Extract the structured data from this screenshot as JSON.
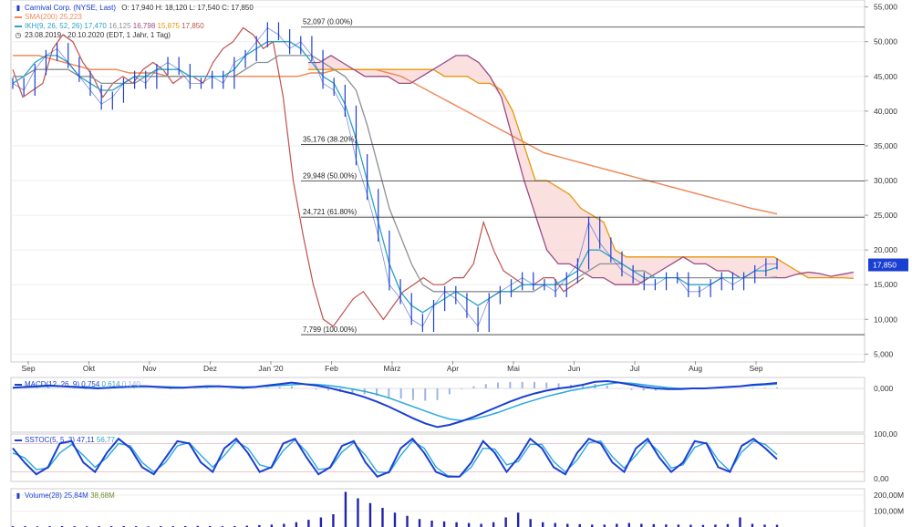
{
  "legend": {
    "instrument": "Carnival Corp. (NYSE, Last)",
    "ohlc": "O: 17,940  H: 18,120  L: 17,540  C: 17,850",
    "sma_label": "SMA(200)",
    "sma_value": "25,223",
    "ikh_label": "IKH(9, 26, 52, 26)",
    "ikh_v1": "17,470",
    "ikh_v2": "16,125",
    "ikh_v3": "16,798",
    "ikh_v4": "15,875",
    "ikh_v5": "17,850",
    "range": "23.08.2019 - 20.10.2020",
    "range_info": "(EDT, 1 Jahr, 1 Tag)",
    "macd_label": "MACD(12, 26, 9)",
    "macd_v1": "0,754",
    "macd_v2": "0,614",
    "macd_v3": "0,140",
    "sstoc_label": "SSTOC(5, 5, 3)",
    "sstoc_v1": "47,11",
    "sstoc_v2": "56,77",
    "volume_label": "Volume(28)",
    "volume_v1": "25,84M",
    "volume_v2": "38,68M"
  },
  "colors": {
    "price": "#1b3fd0",
    "sma": "#f08a5d",
    "tenkan": "#2aa3c7",
    "kijun": "#8b8f96",
    "spanA": "#9a4a86",
    "spanB": "#e8960a",
    "chikou": "#c0504d",
    "cloud": "#f9d5d5",
    "macd": "#1b3fd0",
    "signal": "#29a8df",
    "hist": "#9cb4e6",
    "volume": "#2222aa"
  },
  "chart_data": {
    "type": "line",
    "price_chart": {
      "y_ticks": [
        "55,000",
        "50,000",
        "45,000",
        "40,000",
        "35,000",
        "30,000",
        "25,000",
        "20,000",
        "15,000",
        "10,000",
        "5,000"
      ],
      "y_tick_values": [
        55,
        50,
        45,
        40,
        35,
        30,
        25,
        20,
        15,
        10,
        5
      ],
      "ylim": [
        4,
        56
      ],
      "x_ticks": [
        "Sep",
        "Okt",
        "Nov",
        "Dez",
        "Jan '20",
        "Feb",
        "März",
        "Apr",
        "Mai",
        "Jun",
        "Jul",
        "Aug",
        "Sep"
      ],
      "last_value_label": "17,850",
      "fibonacci": [
        {
          "label": "52,097 (0.00%)",
          "value": 52.097
        },
        {
          "label": "35,176 (38.20%)",
          "value": 35.176
        },
        {
          "label": "29,948 (50.00%)",
          "value": 29.948
        },
        {
          "label": "24,721 (61.80%)",
          "value": 24.721
        },
        {
          "label": "7,799 (100.00%)",
          "value": 7.799
        }
      ],
      "series": [
        {
          "key": "price",
          "values": [
            44,
            43,
            46,
            48,
            49,
            47,
            45,
            43,
            41,
            42,
            44,
            45,
            44,
            46,
            47,
            46,
            44,
            44,
            45,
            44,
            47,
            48,
            50,
            52,
            51,
            49,
            50,
            48,
            44,
            43,
            40,
            33,
            28,
            22,
            15,
            13,
            10,
            9,
            12,
            14,
            13,
            11,
            9,
            13,
            14,
            15,
            16,
            15,
            15,
            14,
            16,
            18,
            24,
            21,
            19,
            17,
            16,
            15,
            15,
            16,
            16,
            14,
            14,
            15,
            16,
            15,
            16,
            17,
            18,
            18
          ]
        },
        {
          "key": "sma",
          "values": [
            48,
            48,
            48,
            47.5,
            47,
            46.5,
            46,
            46,
            46,
            45.5,
            45.5,
            45.5,
            45,
            45,
            45,
            45,
            45,
            45,
            45,
            45,
            45,
            45,
            45,
            45.5,
            45.5,
            46,
            46,
            46,
            46,
            45.5,
            45,
            44,
            43,
            42,
            41,
            40,
            39,
            38,
            37,
            36,
            35,
            34,
            33.5,
            33,
            32.5,
            32,
            31.5,
            31,
            30.5,
            30,
            29.5,
            29,
            28.5,
            28,
            27.5,
            27,
            26.5,
            26,
            25.6,
            25.2
          ]
        },
        {
          "key": "tenkan",
          "values": [
            44,
            45,
            47,
            48,
            48,
            47,
            45,
            44,
            43,
            43,
            44,
            45,
            45,
            46,
            46,
            46,
            45,
            45,
            45,
            45,
            46,
            48,
            49,
            50,
            50,
            50,
            49,
            47,
            45,
            44,
            41,
            36,
            30,
            24,
            18,
            14,
            12,
            11,
            12,
            13,
            14,
            13,
            12,
            13,
            14,
            14,
            15,
            15,
            15,
            15,
            16,
            17,
            20,
            20,
            19,
            18,
            17,
            16,
            16,
            16,
            16,
            15,
            15,
            15,
            16,
            16,
            16,
            17,
            17,
            17.5
          ]
        },
        {
          "key": "kijun",
          "values": [
            45,
            45,
            46,
            46,
            46,
            46,
            45,
            45,
            44,
            44,
            44,
            44,
            45,
            45,
            45,
            45,
            45,
            45,
            45,
            45,
            45,
            46,
            47,
            47,
            48,
            48,
            48,
            48,
            47,
            46,
            45,
            43,
            38,
            32,
            26,
            22,
            18,
            15,
            14,
            14,
            14,
            14,
            14,
            14,
            14,
            14,
            14,
            14,
            15,
            15,
            15,
            16,
            17,
            18,
            18,
            18,
            17,
            17,
            16,
            16,
            16,
            16,
            16,
            16,
            16,
            16,
            16,
            16,
            16,
            16.1
          ]
        },
        {
          "key": "spanA",
          "values": [
            null,
            null,
            null,
            null,
            null,
            null,
            null,
            null,
            null,
            null,
            null,
            null,
            null,
            null,
            null,
            null,
            null,
            null,
            null,
            null,
            null,
            null,
            null,
            null,
            null,
            null,
            47,
            47,
            48,
            47,
            46,
            45,
            45,
            45,
            44,
            44,
            45,
            46,
            47,
            48,
            48,
            47,
            45,
            42,
            36,
            30,
            25,
            20,
            18,
            18,
            17,
            16,
            16,
            15,
            15,
            15,
            16,
            17,
            18,
            19,
            18,
            18,
            17,
            17,
            16,
            16,
            16,
            16,
            16,
            16.5,
            16.8,
            16.6,
            16.2,
            16.5,
            16.8
          ]
        },
        {
          "key": "spanB",
          "values": [
            null,
            null,
            null,
            null,
            null,
            null,
            null,
            null,
            null,
            null,
            null,
            null,
            null,
            null,
            null,
            null,
            null,
            null,
            null,
            null,
            null,
            null,
            null,
            null,
            null,
            null,
            46,
            46,
            46,
            46,
            46,
            46,
            46,
            46,
            46,
            46,
            46,
            46,
            45,
            45,
            45,
            44,
            44,
            43,
            40,
            35,
            30,
            30,
            29,
            28,
            26,
            25,
            24,
            20,
            19,
            19,
            19,
            19,
            19,
            19,
            19,
            19,
            19,
            19,
            19,
            19,
            19,
            19,
            18,
            17,
            16,
            16,
            16,
            16,
            15.9
          ]
        },
        {
          "key": "chikou",
          "values": [
            46,
            42,
            43,
            44,
            49,
            51,
            50,
            47,
            45,
            42,
            44,
            45,
            44,
            46,
            47,
            46,
            44,
            45,
            45,
            44,
            47,
            49,
            50,
            52,
            51,
            49,
            50,
            42,
            30,
            22,
            15,
            10,
            9,
            11,
            13,
            14,
            12,
            10,
            12,
            14,
            15,
            16,
            15,
            15,
            16,
            16,
            18,
            24,
            20,
            17,
            16,
            15,
            15,
            16,
            16,
            14,
            15,
            16
          ]
        }
      ]
    },
    "macd_chart": {
      "y_ticks": [
        "0,000"
      ],
      "ylim": [
        -6,
        1.5
      ],
      "series": [
        {
          "key": "macd",
          "values": [
            0.1,
            0.2,
            0.3,
            0.4,
            0.3,
            0.2,
            0.1,
            0,
            0.1,
            0.2,
            0.3,
            0.3,
            0.2,
            0.1,
            0.1,
            0.2,
            0.3,
            0.3,
            0.2,
            0.1,
            0.2,
            0.4,
            0.6,
            0.8,
            0.6,
            0.4,
            0.1,
            -0.3,
            -0.7,
            -1.2,
            -1.8,
            -2.5,
            -3.3,
            -4.1,
            -4.8,
            -5.3,
            -5.0,
            -4.5,
            -3.9,
            -3.2,
            -2.5,
            -1.8,
            -1.2,
            -0.7,
            -0.3,
            0.0,
            0.2,
            0.5,
            0.9,
            1.0,
            0.8,
            0.5,
            0.2,
            0.0,
            -0.1,
            -0.1,
            0.0,
            0.0,
            0.1,
            0.2,
            0.3,
            0.5,
            0.6,
            0.75
          ]
        },
        {
          "key": "signal",
          "values": [
            0.1,
            0.15,
            0.2,
            0.3,
            0.3,
            0.25,
            0.2,
            0.1,
            0.1,
            0.15,
            0.2,
            0.25,
            0.25,
            0.2,
            0.15,
            0.15,
            0.2,
            0.25,
            0.25,
            0.2,
            0.2,
            0.3,
            0.4,
            0.5,
            0.6,
            0.55,
            0.4,
            0.2,
            -0.1,
            -0.4,
            -0.8,
            -1.3,
            -1.9,
            -2.5,
            -3.1,
            -3.7,
            -4.2,
            -4.4,
            -4.2,
            -3.8,
            -3.3,
            -2.7,
            -2.1,
            -1.6,
            -1.1,
            -0.7,
            -0.3,
            0.0,
            0.3,
            0.6,
            0.8,
            0.7,
            0.5,
            0.3,
            0.1,
            0.0,
            0.0,
            0.0,
            0.1,
            0.2,
            0.3,
            0.4,
            0.5,
            0.6
          ]
        }
      ]
    },
    "sstoc_chart": {
      "y_ticks": [
        "100,00",
        "0,00"
      ],
      "ylim": [
        0,
        100
      ],
      "series": [
        {
          "key": "k",
          "values": [
            70,
            40,
            15,
            30,
            80,
            85,
            40,
            20,
            60,
            90,
            70,
            30,
            15,
            50,
            85,
            80,
            40,
            20,
            70,
            90,
            60,
            20,
            30,
            80,
            90,
            50,
            15,
            30,
            75,
            85,
            40,
            10,
            20,
            70,
            90,
            60,
            20,
            10,
            10,
            40,
            85,
            60,
            20,
            50,
            90,
            70,
            30,
            15,
            60,
            90,
            80,
            40,
            20,
            70,
            90,
            50,
            20,
            40,
            85,
            80,
            30,
            20,
            75,
            90,
            70,
            47
          ]
        },
        {
          "key": "d",
          "values": [
            60,
            50,
            25,
            28,
            60,
            78,
            55,
            30,
            50,
            80,
            75,
            40,
            20,
            40,
            75,
            82,
            55,
            30,
            55,
            85,
            70,
            35,
            28,
            65,
            88,
            62,
            25,
            28,
            62,
            82,
            55,
            20,
            18,
            55,
            85,
            70,
            30,
            12,
            10,
            30,
            70,
            68,
            35,
            42,
            78,
            78,
            42,
            20,
            45,
            82,
            85,
            52,
            28,
            55,
            85,
            62,
            28,
            35,
            72,
            82,
            45,
            22,
            62,
            85,
            78,
            56.8
          ]
        }
      ]
    },
    "volume_chart": {
      "y_ticks": [
        "200,00M",
        "100,00M"
      ],
      "ylim": [
        0,
        240
      ],
      "values": [
        5,
        5,
        4,
        5,
        6,
        5,
        4,
        5,
        5,
        6,
        5,
        4,
        5,
        5,
        6,
        7,
        6,
        5,
        6,
        8,
        12,
        15,
        20,
        30,
        45,
        60,
        80,
        220,
        180,
        150,
        120,
        90,
        70,
        50,
        40,
        35,
        30,
        25,
        20,
        30,
        60,
        90,
        50,
        30,
        25,
        20,
        18,
        15,
        15,
        20,
        25,
        20,
        18,
        16,
        15,
        14,
        13,
        15,
        18,
        60,
        20,
        15,
        14
      ]
    }
  }
}
